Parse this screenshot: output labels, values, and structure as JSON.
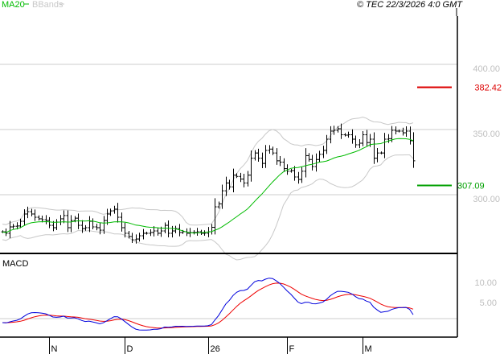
{
  "legend": {
    "ma_label": "MA20",
    "bb_label": "BBands",
    "ma_color": "#00bb00",
    "bb_color": "#c8c8c8"
  },
  "copyright": "© TEC 22/3/2026 4:0 GMT",
  "chart_data": {
    "type": "ohlc",
    "title": "",
    "price_axis": {
      "ticks": [
        {
          "value": 400,
          "label": "400.00"
        },
        {
          "value": 350,
          "label": "350.00"
        },
        {
          "value": 300,
          "label": "300.00"
        }
      ]
    },
    "levels": [
      {
        "value": 382.42,
        "label": "382.42",
        "color": "#dd0000"
      },
      {
        "value": 307.09,
        "label": "307.09",
        "color": "#00a000"
      }
    ],
    "x_labels": [
      {
        "bar": 13,
        "label": "N"
      },
      {
        "bar": 34,
        "label": "D"
      },
      {
        "bar": 57,
        "label": "26"
      },
      {
        "bar": 79,
        "label": "F"
      },
      {
        "bar": 100,
        "label": "M"
      }
    ],
    "closes": [
      271.5,
      270.4,
      275.3,
      275.8,
      276,
      279.6,
      285.2,
      287,
      285.2,
      282.7,
      281.5,
      280.8,
      280.2,
      276.5,
      274.7,
      279,
      281.5,
      284,
      274.7,
      280.2,
      282,
      276.5,
      274,
      274.7,
      279.6,
      275.3,
      274.7,
      272.8,
      280.2,
      285.2,
      287.6,
      288.9,
      282.7,
      274.7,
      270.4,
      267.9,
      265.4,
      266,
      268.5,
      270.4,
      270.4,
      271,
      272.2,
      270.4,
      272.2,
      276.5,
      270.4,
      272.2,
      274,
      271,
      271.6,
      270.4,
      271,
      271,
      271.6,
      270.4,
      270.4,
      271.6,
      275,
      290.7,
      293,
      303,
      309,
      306,
      315,
      314,
      312,
      309,
      315,
      328,
      332,
      328,
      324,
      334,
      335,
      332,
      326,
      325,
      320,
      318,
      318.5,
      313.6,
      311.7,
      318,
      330,
      327,
      321.6,
      327,
      331,
      334,
      342.6,
      348.8,
      349.4,
      350.6,
      346,
      345.7,
      346,
      342.6,
      338.3,
      339.5,
      346,
      340,
      342.6,
      328,
      332,
      332,
      342.6,
      343,
      349.4,
      348.8,
      348.8,
      347.5,
      348.8,
      341.4,
      326
    ],
    "ma_period": 20,
    "macd": {
      "label": "MACD",
      "fast": 12,
      "slow": 26,
      "signal": 9,
      "macd_color": "#0000dd",
      "signal_color": "#ee0000",
      "ticks": [
        {
          "value": 10,
          "label": "10.00"
        },
        {
          "value": 5,
          "label": "5.00"
        }
      ]
    }
  }
}
